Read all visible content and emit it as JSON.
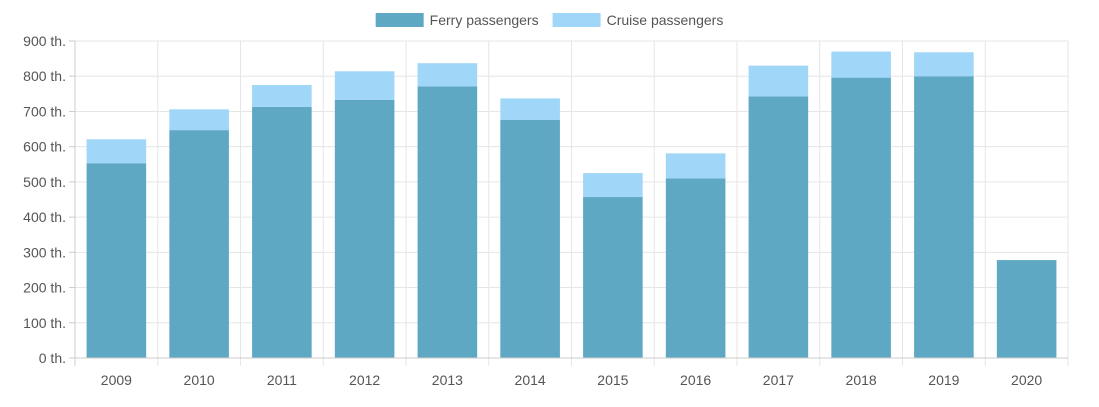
{
  "chart_data": {
    "type": "bar",
    "stacked": true,
    "categories": [
      "2009",
      "2010",
      "2011",
      "2012",
      "2013",
      "2014",
      "2015",
      "2016",
      "2017",
      "2018",
      "2019",
      "2020"
    ],
    "series": [
      {
        "name": "Ferry passengers",
        "color": "#5fa8c4",
        "values": [
          553,
          647,
          713,
          733,
          771,
          676,
          457,
          510,
          743,
          796,
          800,
          278
        ]
      },
      {
        "name": "Cruise passengers",
        "color": "#a0d6f7",
        "values": [
          68,
          59,
          62,
          81,
          66,
          61,
          68,
          71,
          87,
          74,
          68,
          0
        ]
      }
    ],
    "title": "",
    "xlabel": "",
    "ylabel": "",
    "ylim": [
      0,
      900
    ],
    "y_ticks": [
      {
        "value": 0,
        "label": "0 th."
      },
      {
        "value": 100,
        "label": "100 th."
      },
      {
        "value": 200,
        "label": "200 th."
      },
      {
        "value": 300,
        "label": "300 th."
      },
      {
        "value": 400,
        "label": "400 th."
      },
      {
        "value": 500,
        "label": "500 th."
      },
      {
        "value": 600,
        "label": "600 th."
      },
      {
        "value": 700,
        "label": "700 th."
      },
      {
        "value": 800,
        "label": "800 th."
      },
      {
        "value": 900,
        "label": "900 th."
      }
    ],
    "grid": true,
    "legend_position": "top-center",
    "colors": {
      "grid": "#e6e6e6",
      "axis": "#cccccc",
      "text": "#555555"
    }
  }
}
